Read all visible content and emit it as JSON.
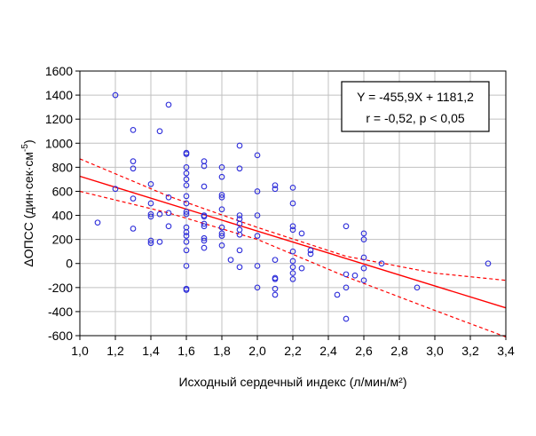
{
  "chart_data": {
    "type": "scatter",
    "xlabel": "Исходный сердечный индекс (л/мин/м²)",
    "ylabel_main": "ΔОПСС (дин·сек·см",
    "ylabel_sup": "-5",
    "ylabel_close": ")",
    "xlim": [
      1.0,
      3.4
    ],
    "ylim": [
      -600,
      1600
    ],
    "x_ticks": [
      1.0,
      1.2,
      1.4,
      1.6,
      1.8,
      2.0,
      2.2,
      2.4,
      2.6,
      2.8,
      3.0,
      3.2,
      3.4
    ],
    "x_tick_labels": [
      "1,0",
      "1,2",
      "1,4",
      "1,6",
      "1,8",
      "2,0",
      "2,2",
      "2,4",
      "2,6",
      "2,8",
      "3,0",
      "3,2",
      "3,4"
    ],
    "y_ticks": [
      -600,
      -400,
      -200,
      0,
      200,
      400,
      600,
      800,
      1000,
      1200,
      1400,
      1600
    ],
    "y_tick_labels": [
      "-600",
      "-400",
      "-200",
      "0",
      "200",
      "400",
      "600",
      "800",
      "1000",
      "1200",
      "1400",
      "1600"
    ],
    "grid": true,
    "annotation": {
      "line1": "Y = -455,9X + 1181,2",
      "line2": "r = -0,52, p < 0,05"
    },
    "regression": {
      "slope": -455.9,
      "intercept": 1181.2
    },
    "confidence_band": {
      "upper": [
        [
          1.0,
          870
        ],
        [
          1.5,
          560
        ],
        [
          2.0,
          300
        ],
        [
          2.5,
          60
        ],
        [
          3.0,
          -80
        ],
        [
          3.4,
          -140
        ]
      ],
      "lower": [
        [
          1.0,
          600
        ],
        [
          1.5,
          420
        ],
        [
          2.0,
          200
        ],
        [
          2.5,
          -110
        ],
        [
          3.0,
          -390
        ],
        [
          3.4,
          -610
        ]
      ]
    },
    "colors": {
      "points": "#2b2bd9",
      "line": "#ff0000",
      "grid": "#c0c0c0"
    },
    "points": [
      {
        "x": 1.1,
        "y": 340
      },
      {
        "x": 1.2,
        "y": 1400
      },
      {
        "x": 1.2,
        "y": 620
      },
      {
        "x": 1.3,
        "y": 1110
      },
      {
        "x": 1.3,
        "y": 850
      },
      {
        "x": 1.3,
        "y": 790
      },
      {
        "x": 1.3,
        "y": 540
      },
      {
        "x": 1.3,
        "y": 290
      },
      {
        "x": 1.4,
        "y": 660
      },
      {
        "x": 1.4,
        "y": 500
      },
      {
        "x": 1.4,
        "y": 410
      },
      {
        "x": 1.4,
        "y": 390
      },
      {
        "x": 1.4,
        "y": 190
      },
      {
        "x": 1.4,
        "y": 170
      },
      {
        "x": 1.45,
        "y": 1100
      },
      {
        "x": 1.45,
        "y": 410
      },
      {
        "x": 1.45,
        "y": 180
      },
      {
        "x": 1.5,
        "y": 1320
      },
      {
        "x": 1.5,
        "y": 550
      },
      {
        "x": 1.5,
        "y": 420
      },
      {
        "x": 1.5,
        "y": 310
      },
      {
        "x": 1.6,
        "y": 920
      },
      {
        "x": 1.6,
        "y": 910
      },
      {
        "x": 1.6,
        "y": 800
      },
      {
        "x": 1.6,
        "y": 750
      },
      {
        "x": 1.6,
        "y": 700
      },
      {
        "x": 1.6,
        "y": 650
      },
      {
        "x": 1.6,
        "y": 560
      },
      {
        "x": 1.6,
        "y": 500
      },
      {
        "x": 1.6,
        "y": 430
      },
      {
        "x": 1.6,
        "y": 410
      },
      {
        "x": 1.6,
        "y": 300
      },
      {
        "x": 1.6,
        "y": 260
      },
      {
        "x": 1.6,
        "y": 230
      },
      {
        "x": 1.6,
        "y": 180
      },
      {
        "x": 1.6,
        "y": 110
      },
      {
        "x": 1.6,
        "y": -20
      },
      {
        "x": 1.6,
        "y": -210
      },
      {
        "x": 1.6,
        "y": -220
      },
      {
        "x": 1.7,
        "y": 850
      },
      {
        "x": 1.7,
        "y": 810
      },
      {
        "x": 1.7,
        "y": 640
      },
      {
        "x": 1.7,
        "y": 400
      },
      {
        "x": 1.7,
        "y": 390
      },
      {
        "x": 1.7,
        "y": 330
      },
      {
        "x": 1.7,
        "y": 310
      },
      {
        "x": 1.7,
        "y": 210
      },
      {
        "x": 1.7,
        "y": 190
      },
      {
        "x": 1.7,
        "y": 130
      },
      {
        "x": 1.8,
        "y": 800
      },
      {
        "x": 1.8,
        "y": 720
      },
      {
        "x": 1.8,
        "y": 570
      },
      {
        "x": 1.8,
        "y": 550
      },
      {
        "x": 1.8,
        "y": 450
      },
      {
        "x": 1.8,
        "y": 300
      },
      {
        "x": 1.8,
        "y": 250
      },
      {
        "x": 1.8,
        "y": 230
      },
      {
        "x": 1.8,
        "y": 150
      },
      {
        "x": 1.85,
        "y": 30
      },
      {
        "x": 1.9,
        "y": 980
      },
      {
        "x": 1.9,
        "y": 790
      },
      {
        "x": 1.9,
        "y": 400
      },
      {
        "x": 1.9,
        "y": 370
      },
      {
        "x": 1.9,
        "y": 330
      },
      {
        "x": 1.9,
        "y": 280
      },
      {
        "x": 1.9,
        "y": 240
      },
      {
        "x": 1.9,
        "y": 110
      },
      {
        "x": 1.9,
        "y": -30
      },
      {
        "x": 2.0,
        "y": 900
      },
      {
        "x": 2.0,
        "y": 600
      },
      {
        "x": 2.0,
        "y": 400
      },
      {
        "x": 2.0,
        "y": 230
      },
      {
        "x": 2.0,
        "y": -20
      },
      {
        "x": 2.0,
        "y": -200
      },
      {
        "x": 2.1,
        "y": 650
      },
      {
        "x": 2.1,
        "y": 620
      },
      {
        "x": 2.1,
        "y": 30
      },
      {
        "x": 2.1,
        "y": -120
      },
      {
        "x": 2.1,
        "y": -130
      },
      {
        "x": 2.1,
        "y": -210
      },
      {
        "x": 2.1,
        "y": -260
      },
      {
        "x": 2.2,
        "y": 630
      },
      {
        "x": 2.2,
        "y": 500
      },
      {
        "x": 2.2,
        "y": 310
      },
      {
        "x": 2.2,
        "y": 280
      },
      {
        "x": 2.2,
        "y": 100
      },
      {
        "x": 2.2,
        "y": 20
      },
      {
        "x": 2.2,
        "y": -30
      },
      {
        "x": 2.2,
        "y": -80
      },
      {
        "x": 2.2,
        "y": -130
      },
      {
        "x": 2.25,
        "y": 250
      },
      {
        "x": 2.25,
        "y": -40
      },
      {
        "x": 2.3,
        "y": 110
      },
      {
        "x": 2.3,
        "y": 80
      },
      {
        "x": 2.45,
        "y": -260
      },
      {
        "x": 2.5,
        "y": 310
      },
      {
        "x": 2.5,
        "y": -90
      },
      {
        "x": 2.5,
        "y": -200
      },
      {
        "x": 2.5,
        "y": -460
      },
      {
        "x": 2.55,
        "y": -100
      },
      {
        "x": 2.6,
        "y": 250
      },
      {
        "x": 2.6,
        "y": 200
      },
      {
        "x": 2.6,
        "y": 50
      },
      {
        "x": 2.6,
        "y": -40
      },
      {
        "x": 2.6,
        "y": -140
      },
      {
        "x": 2.7,
        "y": 0
      },
      {
        "x": 2.9,
        "y": -200
      },
      {
        "x": 3.3,
        "y": 0
      }
    ]
  }
}
